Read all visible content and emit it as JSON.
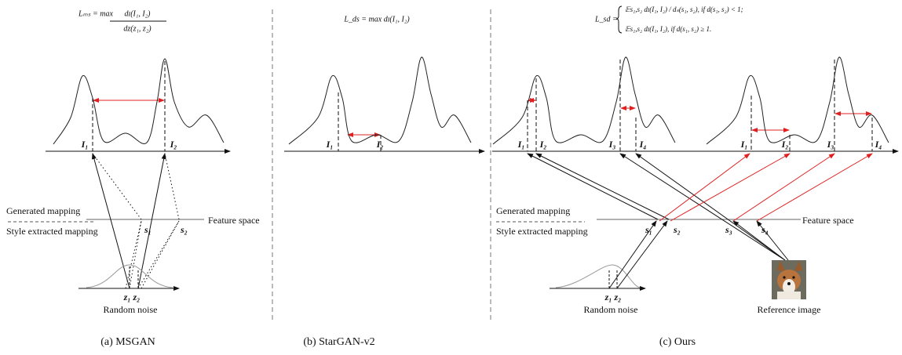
{
  "panels": [
    {
      "caption": "(a) MSGAN",
      "formula": {
        "lhs": "Lₘₛ = max",
        "numerator": "dɪ(I₁, I₂)",
        "denominator": "dz(z₁, z₂)"
      },
      "image_labels": [
        "I₁",
        "I₂"
      ],
      "legend": [
        "Generated mapping",
        "Style extracted mapping"
      ],
      "feature_space": "Feature space",
      "style_labels": [
        "s₁",
        "s₂"
      ],
      "noise_labels": "z₁ z₂",
      "noise_caption": "Random noise"
    },
    {
      "caption": "(b) StarGAN-v2",
      "formula": {
        "text": "L_ds = max dɪ(I₁, I₂)"
      },
      "image_labels": [
        "I₁",
        "I₂"
      ]
    },
    {
      "caption": "(c) Ours",
      "formula": {
        "lhs": "L_sd =",
        "case1": "𝔼s₁,s₂ dɪ(I₁, I₂) / dₛ(s₁, s₂),   if d(s₁, s₂) < 1;",
        "case2": "𝔼s₁,s₂ dɪ(I₁, I₂),   if d(s₁, s₂) ≥ 1."
      },
      "image_labels_left": [
        "I₁",
        "I₂",
        "I₃",
        "I₄"
      ],
      "image_labels_right": [
        "I₁",
        "I₂",
        "I₃",
        "I₄"
      ],
      "legend": [
        "Generated mapping",
        "Style extracted mapping"
      ],
      "feature_space": "Feature space",
      "style_labels": [
        "s₁",
        "s₂",
        "s₃",
        "s₄"
      ],
      "noise_labels": "z₁ z₂",
      "noise_caption": "Random noise",
      "reference_caption": "Reference image"
    }
  ]
}
